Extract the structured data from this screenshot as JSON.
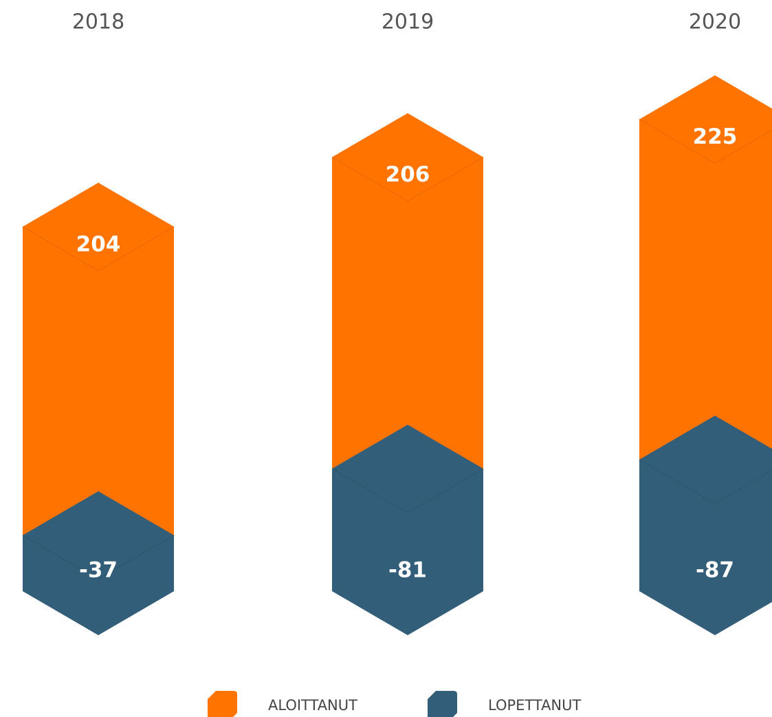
{
  "chart_data": {
    "type": "stacked-bar",
    "categories": [
      "2018",
      "2019",
      "2020"
    ],
    "series": [
      {
        "name": "ALOITTANUT",
        "color": "#ff7300",
        "values": [
          204,
          206,
          225
        ]
      },
      {
        "name": "LOPETTANUT",
        "color": "#335e7a",
        "values": [
          -37,
          -81,
          -87
        ]
      }
    ]
  }
}
